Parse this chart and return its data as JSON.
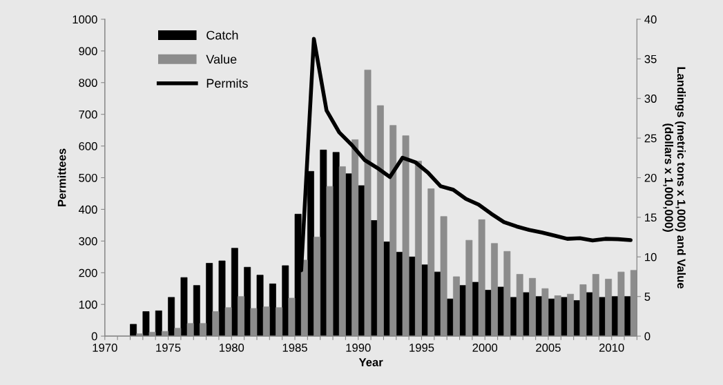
{
  "chart_data": {
    "type": "bar",
    "xlabel": "Year",
    "ylabel": "Permittees",
    "y2label": "Landings (metric tons x 1,000) and Value\n(dollars x 1,000,000)",
    "xlim": [
      1970,
      2012
    ],
    "xticks": [
      1970,
      {
        "value": 1971,
        "label": null
      },
      {
        "value": 1972,
        "label": null
      },
      {
        "value": 1973,
        "label": null
      },
      {
        "value": 1974,
        "label": null
      },
      1975,
      {
        "value": 1976,
        "label": null
      },
      {
        "value": 1977,
        "label": null
      },
      {
        "value": 1978,
        "label": null
      },
      {
        "value": 1979,
        "label": null
      },
      1980,
      {
        "value": 1981,
        "label": null
      },
      {
        "value": 1982,
        "label": null
      },
      {
        "value": 1983,
        "label": null
      },
      {
        "value": 1984,
        "label": null
      },
      1985,
      {
        "value": 1986,
        "label": null
      },
      {
        "value": 1987,
        "label": null
      },
      {
        "value": 1988,
        "label": null
      },
      {
        "value": 1989,
        "label": null
      },
      1990,
      {
        "value": 1991,
        "label": null
      },
      {
        "value": 1992,
        "label": null
      },
      {
        "value": 1993,
        "label": null
      },
      {
        "value": 1994,
        "label": null
      },
      1995,
      {
        "value": 1996,
        "label": null
      },
      {
        "value": 1997,
        "label": null
      },
      {
        "value": 1998,
        "label": null
      },
      {
        "value": 1999,
        "label": null
      },
      2000,
      {
        "value": 2001,
        "label": null
      },
      {
        "value": 2002,
        "label": null
      },
      {
        "value": 2003,
        "label": null
      },
      {
        "value": 2004,
        "label": null
      },
      2005,
      {
        "value": 2006,
        "label": null
      },
      {
        "value": 2007,
        "label": null
      },
      {
        "value": 2008,
        "label": null
      },
      {
        "value": 2009,
        "label": null
      },
      2010,
      {
        "value": 2011,
        "label": null
      },
      {
        "value": 2012,
        "label": null
      }
    ],
    "ylim": [
      0,
      1000
    ],
    "yticks": [
      0,
      100,
      200,
      300,
      400,
      500,
      600,
      700,
      800,
      900,
      1000
    ],
    "y2lim": [
      0,
      40
    ],
    "y2ticks": [
      0,
      5,
      10,
      15,
      20,
      25,
      30,
      35,
      40
    ],
    "x": [
      1972.5,
      1973.5,
      1974.5,
      1975.5,
      1976.5,
      1977.5,
      1978.5,
      1979.5,
      1980.5,
      1981.5,
      1982.5,
      1983.5,
      1984.5,
      1985.5,
      1986.5,
      1987.5,
      1988.5,
      1989.5,
      1990.5,
      1991.5,
      1992.5,
      1993.5,
      1994.5,
      1995.5,
      1996.5,
      1997.5,
      1998.5,
      1999.5,
      2000.5,
      2001.5,
      2002.5,
      2003.5,
      2004.5,
      2005.5,
      2006.5,
      2007.5,
      2008.5,
      2009.5,
      2010.5,
      2011.5
    ],
    "series": [
      {
        "name": "Catch",
        "axis": "y2",
        "color": "#000000",
        "values": [
          1.5,
          3.1,
          3.2,
          4.9,
          7.4,
          6.4,
          9.2,
          9.5,
          11.1,
          8.7,
          7.7,
          6.6,
          8.9,
          15.4,
          20.8,
          23.5,
          23.2,
          20.5,
          19.0,
          14.6,
          11.9,
          10.6,
          10.0,
          9.0,
          8.1,
          4.7,
          6.4,
          6.8,
          5.8,
          6.2,
          4.9,
          5.5,
          5.0,
          4.7,
          4.9,
          4.5,
          5.5,
          4.9,
          5.0,
          5.0
        ]
      },
      {
        "name": "Value",
        "axis": "y2",
        "color": "#8c8c8c",
        "values": [
          0.3,
          0.5,
          0.6,
          1.0,
          1.6,
          1.6,
          3.1,
          3.6,
          5.0,
          3.5,
          3.7,
          3.6,
          4.8,
          9.6,
          12.5,
          18.9,
          21.4,
          24.8,
          33.6,
          29.1,
          26.6,
          25.3,
          22.1,
          18.6,
          15.1,
          7.5,
          12.1,
          14.7,
          11.7,
          10.7,
          7.8,
          7.3,
          6.0,
          5.1,
          5.3,
          6.5,
          7.8,
          7.2,
          8.1,
          8.3
        ]
      },
      {
        "name": "Permits",
        "type": "line",
        "axis": "y",
        "color": "#000000",
        "values": [
          null,
          null,
          null,
          null,
          null,
          null,
          null,
          null,
          null,
          null,
          null,
          null,
          null,
          208,
          938,
          712,
          643,
          603,
          556,
          531,
          502,
          563,
          549,
          516,
          473,
          462,
          433,
          415,
          386,
          360,
          346,
          335,
          327,
          317,
          307,
          309,
          302,
          307,
          306,
          303
        ]
      }
    ],
    "legend": "top left",
    "grid": false
  }
}
